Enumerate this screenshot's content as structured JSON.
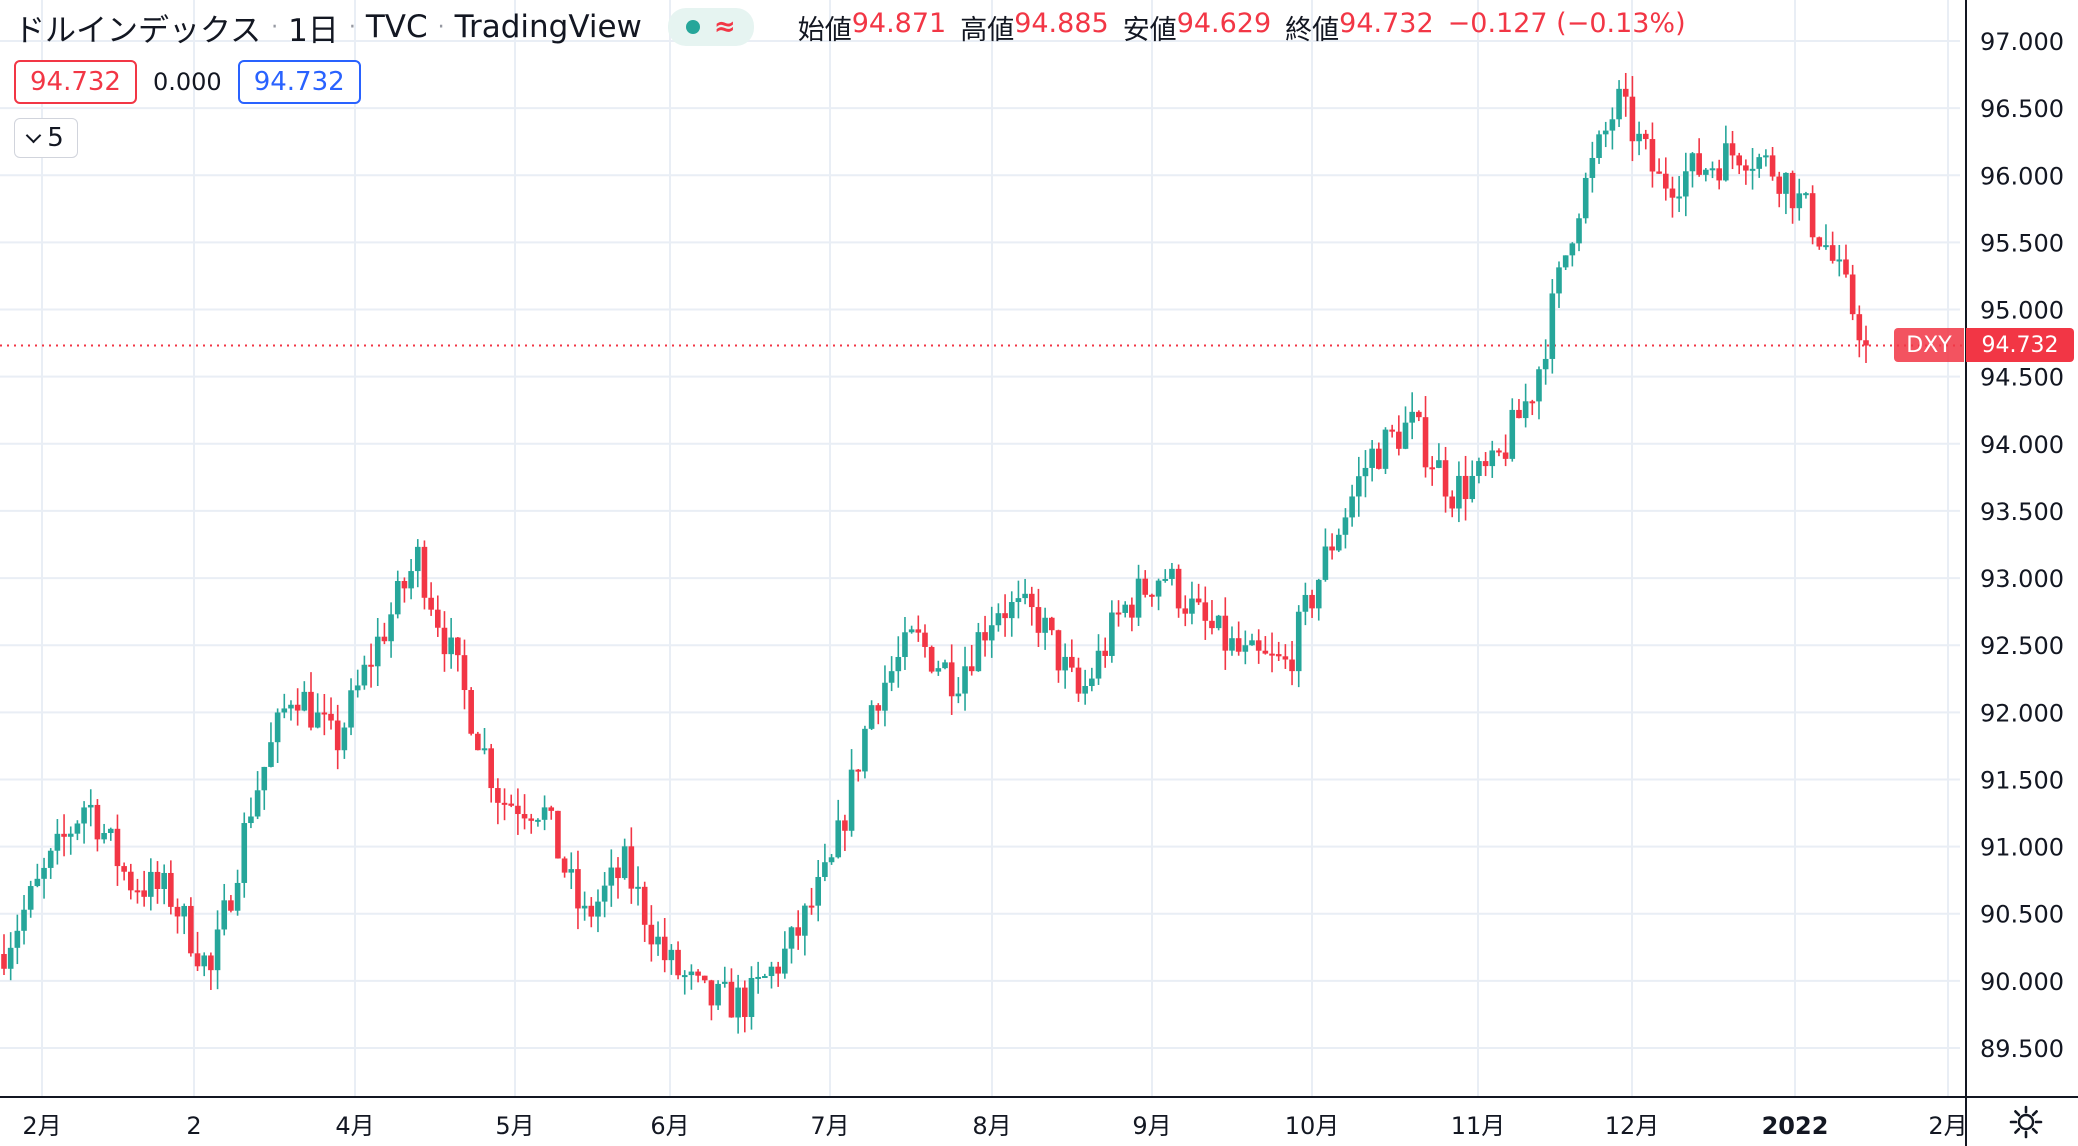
{
  "header": {
    "title": "ドルインデックス",
    "interval": "1日",
    "source": "TVC",
    "platform": "TradingView",
    "status_symbol": "≈",
    "open_label": "始値",
    "open": "94.871",
    "high_label": "高値",
    "high": "94.885",
    "low_label": "安値",
    "low": "94.629",
    "close_label": "終値",
    "close": "94.732",
    "change": "−0.127 (−0.13%)"
  },
  "quote": {
    "bid": "94.732",
    "spread": "0.000",
    "ask": "94.732"
  },
  "indicators_toggle": {
    "count": "5"
  },
  "price_tag": {
    "symbol": "DXY",
    "price": "94.732"
  },
  "colors": {
    "up": "#26a69a",
    "down": "#f23645",
    "grid": "#e9eef5",
    "axis_text": "#131722",
    "ask": "#2962ff"
  },
  "chart_data": {
    "type": "candlestick",
    "title": "ドルインデックス · 1日 · TVC · TradingView",
    "ylim": [
      89.0,
      97.3
    ],
    "y_ticks": [
      "97.000",
      "96.500",
      "96.000",
      "95.500",
      "95.000",
      "94.500",
      "94.000",
      "93.500",
      "93.000",
      "92.500",
      "92.000",
      "91.500",
      "91.000",
      "90.500",
      "90.000",
      "89.500"
    ],
    "x_ticks": [
      "2月",
      "2",
      "4月",
      "5月",
      "6月",
      "7月",
      "8月",
      "9月",
      "10月",
      "11月",
      "12月",
      "2022",
      "2月"
    ],
    "last_price": 94.732,
    "grid": true,
    "anchors": [
      [
        90.2,
        90.3
      ],
      [
        90.9,
        90.7
      ],
      [
        91.3,
        91.4
      ],
      [
        91.0,
        90.5
      ],
      [
        90.4,
        90.9
      ],
      [
        90.2,
        89.9
      ],
      [
        91.1,
        91.6
      ],
      [
        92.0,
        92.4
      ],
      [
        91.6,
        91.9
      ],
      [
        92.3,
        92.7
      ],
      [
        93.1,
        93.2
      ],
      [
        92.4,
        92.1
      ],
      [
        91.5,
        91.2
      ],
      [
        91.1,
        91.5
      ],
      [
        90.6,
        90.3
      ],
      [
        91.2,
        90.5
      ],
      [
        90.4,
        89.9
      ],
      [
        89.8,
        89.9
      ],
      [
        89.8,
        89.9
      ],
      [
        90.1,
        90.4
      ],
      [
        90.4,
        91.3
      ],
      [
        92.0,
        92.2
      ],
      [
        92.4,
        92.7
      ],
      [
        92.1,
        92.4
      ],
      [
        92.6,
        93.0
      ],
      [
        92.8,
        92.6
      ],
      [
        92.2,
        92.0
      ],
      [
        92.6,
        92.9
      ],
      [
        92.6,
        93.5
      ],
      [
        92.8,
        92.5
      ],
      [
        92.6,
        92.2
      ],
      [
        92.1,
        92.6
      ],
      [
        93.0,
        93.4
      ],
      [
        93.7,
        94.1
      ],
      [
        94.2,
        94.1
      ],
      [
        93.8,
        93.5
      ],
      [
        93.6,
        94.0
      ],
      [
        94.2,
        94.7
      ],
      [
        95.5,
        96.0
      ],
      [
        96.5,
        96.6
      ],
      [
        95.9,
        96.0
      ],
      [
        96.2,
        95.9
      ],
      [
        96.3,
        96.1
      ],
      [
        96.1,
        95.9
      ],
      [
        95.8,
        95.2
      ],
      [
        94.8,
        94.73
      ]
    ]
  }
}
